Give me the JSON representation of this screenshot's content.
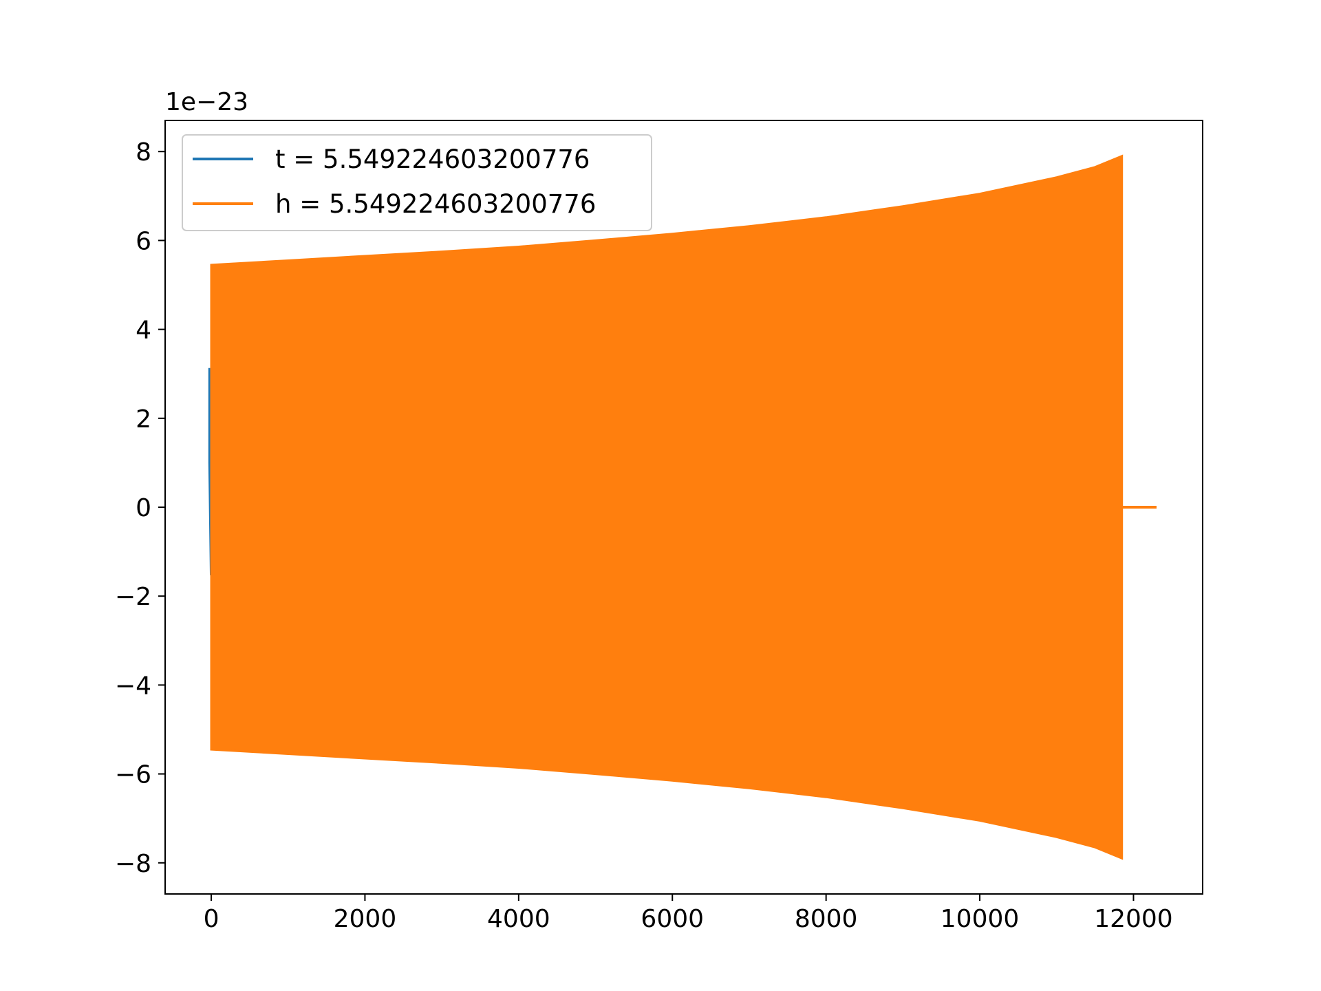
{
  "chart_data": {
    "type": "line",
    "title": "",
    "xlabel": "",
    "ylabel": "",
    "offset_label": "1e−23",
    "xlim": [
      -600,
      12900
    ],
    "ylim": [
      -8.7,
      8.7
    ],
    "x_ticks": [
      0,
      2000,
      4000,
      6000,
      8000,
      10000,
      12000
    ],
    "x_tick_labels": [
      "0",
      "2000",
      "4000",
      "6000",
      "8000",
      "10000",
      "12000"
    ],
    "y_ticks": [
      -8,
      -6,
      -4,
      -2,
      0,
      2,
      4,
      6,
      8
    ],
    "y_tick_labels": [
      "−8",
      "−6",
      "−4",
      "−2",
      "0",
      "2",
      "4",
      "6",
      "8"
    ],
    "grid": false,
    "legend_position": "top-left",
    "series": [
      {
        "name": "t = 5.549224603200776",
        "color": "#1f77b4",
        "envelope_x": [
          -20,
          0,
          5
        ],
        "envelope_upper": [
          3.1,
          3.1,
          1.8
        ],
        "envelope_lower": [
          1.0,
          -1.5,
          -1.5
        ]
      },
      {
        "name": "h = 5.549224603200776",
        "color": "#ff7f0e",
        "envelope_x": [
          0,
          1000,
          2000,
          3000,
          4000,
          5000,
          6000,
          7000,
          8000,
          9000,
          10000,
          11000,
          11500,
          11850
        ],
        "envelope_upper": [
          5.45,
          5.55,
          5.65,
          5.75,
          5.86,
          6.0,
          6.15,
          6.32,
          6.52,
          6.77,
          7.05,
          7.42,
          7.65,
          7.9
        ],
        "envelope_lower": [
          -5.45,
          -5.55,
          -5.65,
          -5.75,
          -5.86,
          -6.0,
          -6.15,
          -6.32,
          -6.52,
          -6.77,
          -7.05,
          -7.42,
          -7.65,
          -7.9
        ],
        "tail_x": [
          11850,
          12300
        ],
        "tail_y": [
          0,
          0
        ]
      }
    ]
  }
}
